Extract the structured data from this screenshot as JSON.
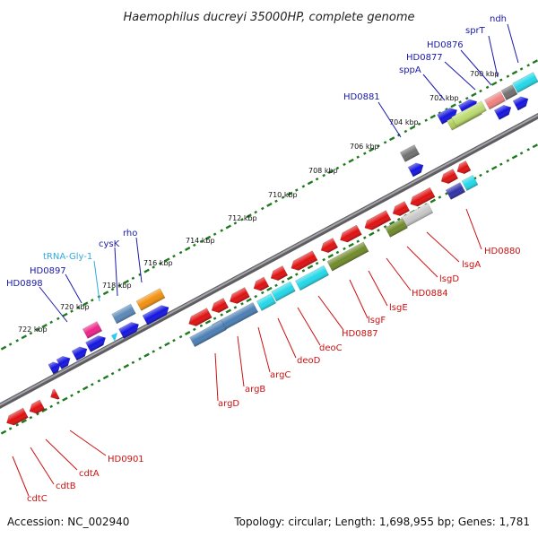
{
  "title": "Haemophilus ducreyi 35000HP, complete genome",
  "footer": {
    "accession": "Accession: NC_002940",
    "summary": "Topology: circular; Length: 1,698,955 bp; Genes: 1,781"
  },
  "scale": {
    "ticks": [
      "700 kbp",
      "702 kbp",
      "704 kbp",
      "706 kbp",
      "708 kbp",
      "710 kbp",
      "712 kbp",
      "714 kbp",
      "716 kbp",
      "718 kbp",
      "720 kbp",
      "722 kbp"
    ]
  },
  "colors": {
    "forward_label": "#1a1aaa",
    "reverse_label": "#cc1111",
    "trna_label": "#33aadd",
    "backbone": "#8a8a8e",
    "tick": "#1f7a1f"
  },
  "labels": {
    "forward": [
      "ndh",
      "sprT",
      "HD0876",
      "HD0877",
      "sppA",
      "HD0881",
      "rho",
      "cysK",
      "HD0897",
      "HD0898"
    ],
    "trna": [
      "tRNA-Gly-1"
    ],
    "reverse": [
      "HD0880",
      "lsgA",
      "lsgD",
      "HD0884",
      "lsgE",
      "lsgF",
      "HD0887",
      "deoC",
      "deoD",
      "argC",
      "argB",
      "argD",
      "HD0901",
      "cdtA",
      "cdtB",
      "cdtC"
    ]
  }
}
